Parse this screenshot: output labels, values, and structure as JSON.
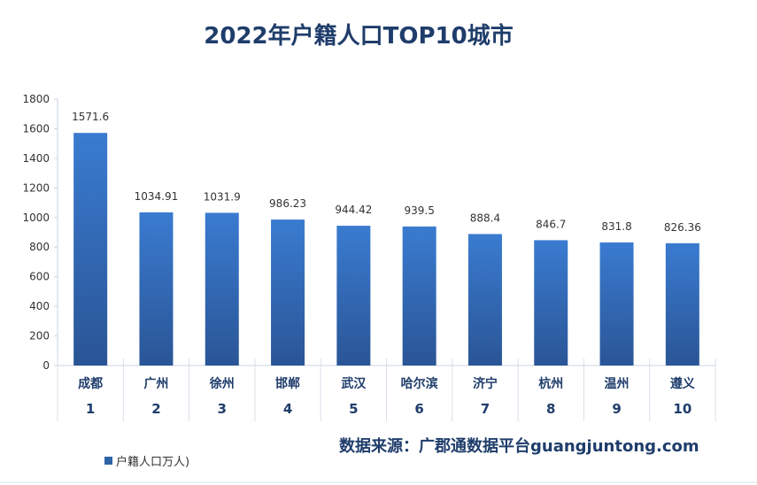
{
  "chart_data": {
    "type": "bar",
    "title": "2022年户籍人口TOP10城市",
    "categories": [
      "成都",
      "广州",
      "徐州",
      "邯郸",
      "武汉",
      "哈尔滨",
      "济宁",
      "杭州",
      "温州",
      "遵义"
    ],
    "ranks": [
      "1",
      "2",
      "3",
      "4",
      "5",
      "6",
      "7",
      "8",
      "9",
      "10"
    ],
    "series": [
      {
        "name": "户籍人口万人)",
        "values": [
          1571.6,
          1034.91,
          1031.9,
          986.23,
          944.42,
          939.5,
          888.4,
          846.7,
          831.8,
          826.36
        ]
      }
    ],
    "value_labels": [
      "1571.6",
      "1034.91",
      "1031.9",
      "986.23",
      "944.42",
      "939.5",
      "888.4",
      "846.7",
      "831.8",
      "826.36"
    ],
    "ylim": [
      0,
      1800
    ],
    "yticks": [
      0,
      200,
      400,
      600,
      800,
      1000,
      1200,
      1400,
      1600,
      1800
    ],
    "grid": false,
    "legend": "bottom-left",
    "bar_color_top": "#3a7bd0",
    "bar_color_bottom": "#2a5596",
    "source": "数据来源：广郡通数据平台guangjuntong.com"
  }
}
